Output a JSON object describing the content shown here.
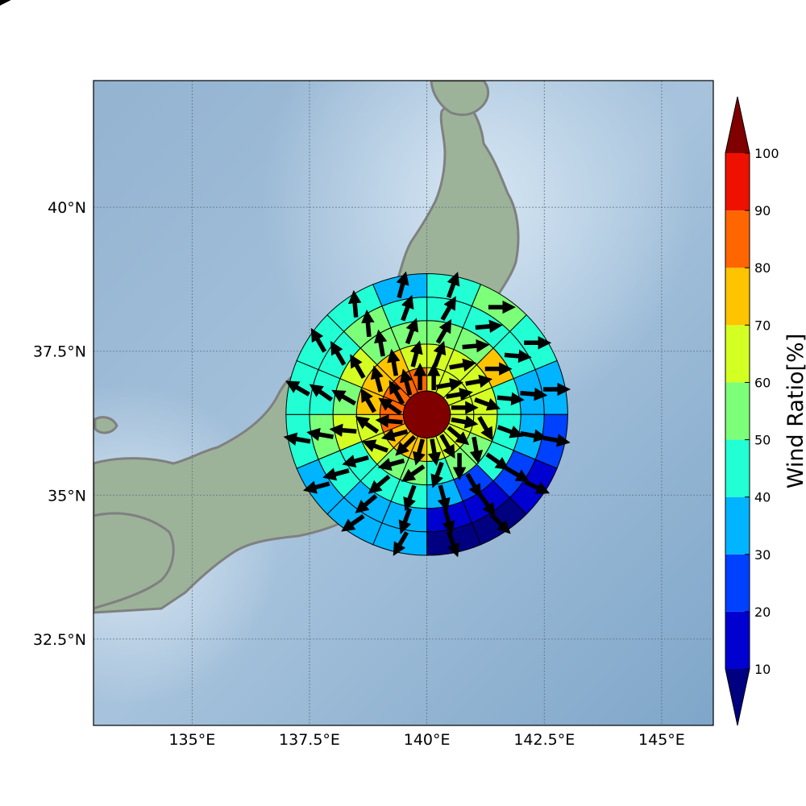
{
  "chart_data": {
    "type": "polar-sector-map",
    "map": {
      "lon_range": [
        132.9,
        146.1
      ],
      "lat_range": [
        31.0,
        42.2
      ],
      "xticks": [
        "135°E",
        "137.5°E",
        "140°E",
        "142.5°E",
        "145°E"
      ],
      "yticks": [
        "40°N",
        "37.5°N",
        "35°N",
        "32.5°N"
      ],
      "grid": true,
      "background": "shaded relief map"
    },
    "wind_rose": {
      "center": {
        "lon": 140.0,
        "lat": 36.4
      },
      "sector_bounds_deg": [
        0,
        22.5,
        45,
        67.5,
        90,
        112.5,
        135,
        157.5,
        180,
        202.5,
        225,
        247.5,
        270,
        292.5,
        315,
        337.5
      ],
      "ring_labels": [
        "0.5°",
        "1.0°",
        "1.5°",
        "2.0°",
        "2.5°",
        "3.0°"
      ],
      "center_value": 100,
      "rings": [
        {
          "values": [
            62,
            62,
            62,
            62,
            62,
            62,
            62,
            62,
            76,
            76,
            76,
            85,
            85,
            85,
            85,
            85
          ],
          "wind_dir_deg": [
            0,
            80,
            80,
            90,
            100,
            130,
            150,
            170,
            195,
            225,
            255,
            275,
            305,
            330,
            345,
            0
          ]
        },
        {
          "values": [
            65,
            65,
            65,
            65,
            65,
            55,
            55,
            45,
            55,
            55,
            65,
            65,
            76,
            76,
            76,
            65
          ],
          "wind_dir_deg": [
            20,
            80,
            80,
            110,
            150,
            170,
            180,
            200,
            235,
            255,
            290,
            305,
            330,
            345,
            350,
            15
          ]
        },
        {
          "values": [
            55,
            55,
            76,
            45,
            45,
            45,
            25,
            35,
            45,
            45,
            45,
            65,
            55,
            65,
            55,
            55
          ],
          "wind_dir_deg": [
            30,
            85,
            90,
            95,
            110,
            125,
            150,
            165,
            200,
            230,
            255,
            275,
            300,
            330,
            350,
            20
          ]
        },
        {
          "values": [
            45,
            45,
            45,
            35,
            35,
            25,
            15,
            15,
            35,
            35,
            45,
            55,
            45,
            45,
            55,
            45
          ],
          "wind_dir_deg": [
            30,
            85,
            95,
            95,
            100,
            120,
            145,
            165,
            200,
            230,
            255,
            280,
            305,
            330,
            355,
            20
          ]
        },
        {
          "values": [
            45,
            55,
            45,
            35,
            25,
            15,
            5,
            5,
            35,
            35,
            35,
            45,
            45,
            45,
            45,
            35
          ],
          "wind_dir_deg": [
            20,
            90,
            90,
            90,
            100,
            115,
            135,
            160,
            210,
            235,
            255,
            280,
            300,
            330,
            355,
            15
          ]
        },
        {
          "values": [
            35,
            55,
            45,
            35,
            25,
            5,
            5,
            5,
            25,
            25,
            35,
            35,
            35,
            45,
            35,
            35
          ],
          "wind_dir_deg": [
            15,
            85,
            90,
            90,
            95,
            110,
            140,
            165,
            210,
            240,
            255,
            275,
            300,
            330,
            355,
            15
          ]
        }
      ]
    },
    "colorbar": {
      "label": "Wind Ratio[%]",
      "ticks": [
        "10",
        "20",
        "30",
        "40",
        "50",
        "60",
        "70",
        "80",
        "90",
        "100"
      ],
      "bounds": [
        10,
        20,
        30,
        40,
        50,
        60,
        70,
        80,
        90,
        100
      ],
      "colors": [
        "#0000d0",
        "#0040ff",
        "#00b4ff",
        "#22ffd4",
        "#7cff79",
        "#d4ff22",
        "#ffc400",
        "#ff6600",
        "#ee1100"
      ],
      "under_color": "#000080",
      "over_color": "#800000",
      "extend": "both"
    }
  }
}
